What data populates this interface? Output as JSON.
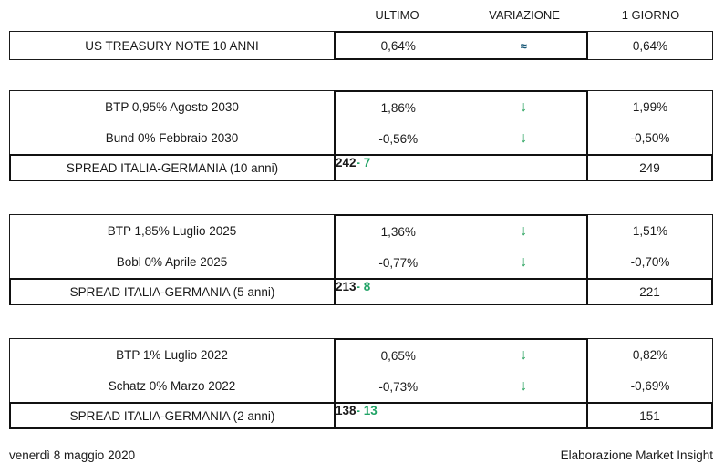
{
  "columns": {
    "ultimo": "ULTIMO",
    "variazione": "VARIAZIONE",
    "giorno": "1 GIORNO"
  },
  "treasury": {
    "label": "US TREASURY NOTE 10 ANNI",
    "ultimo": "0,64%",
    "variazione": "≈",
    "giorno": "0,64%"
  },
  "sections": [
    {
      "bonds": [
        {
          "label": "BTP 0,95% Agosto 2030",
          "ultimo": "1,86%",
          "variazione": "↓",
          "giorno": "1,99%"
        },
        {
          "label": "Bund 0% Febbraio 2030",
          "ultimo": "-0,56%",
          "variazione": "↓",
          "giorno": "-0,50%"
        }
      ],
      "spread": {
        "label": "SPREAD ITALIA-GERMANIA (10 anni)",
        "ultimo": "242",
        "variazione": "- 7",
        "giorno": "249"
      }
    },
    {
      "bonds": [
        {
          "label": "BTP 1,85% Luglio 2025",
          "ultimo": "1,36%",
          "variazione": "↓",
          "giorno": "1,51%"
        },
        {
          "label": "Bobl 0% Aprile 2025",
          "ultimo": "-0,77%",
          "variazione": "↓",
          "giorno": "-0,70%"
        }
      ],
      "spread": {
        "label": "SPREAD ITALIA-GERMANIA (5 anni)",
        "ultimo": "213",
        "variazione": "- 8",
        "giorno": "221"
      }
    },
    {
      "bonds": [
        {
          "label": "BTP 1% Luglio 2022",
          "ultimo": "0,65%",
          "variazione": "↓",
          "giorno": "0,82%"
        },
        {
          "label": "Schatz 0% Marzo 2022",
          "ultimo": "-0,73%",
          "variazione": "↓",
          "giorno": "-0,69%"
        }
      ],
      "spread": {
        "label": "SPREAD ITALIA-GERMANIA (2 anni)",
        "ultimo": "138",
        "variazione": "- 13",
        "giorno": "151"
      }
    }
  ],
  "footer": {
    "date": "venerdì 8 maggio 2020",
    "source": "Elaborazione Market Insight"
  },
  "colors": {
    "arrow_down_green": "#2aa35e",
    "spread_change_green": "#21a366",
    "approx_blue": "#1b5a78",
    "border_black": "#1a1a1a"
  }
}
